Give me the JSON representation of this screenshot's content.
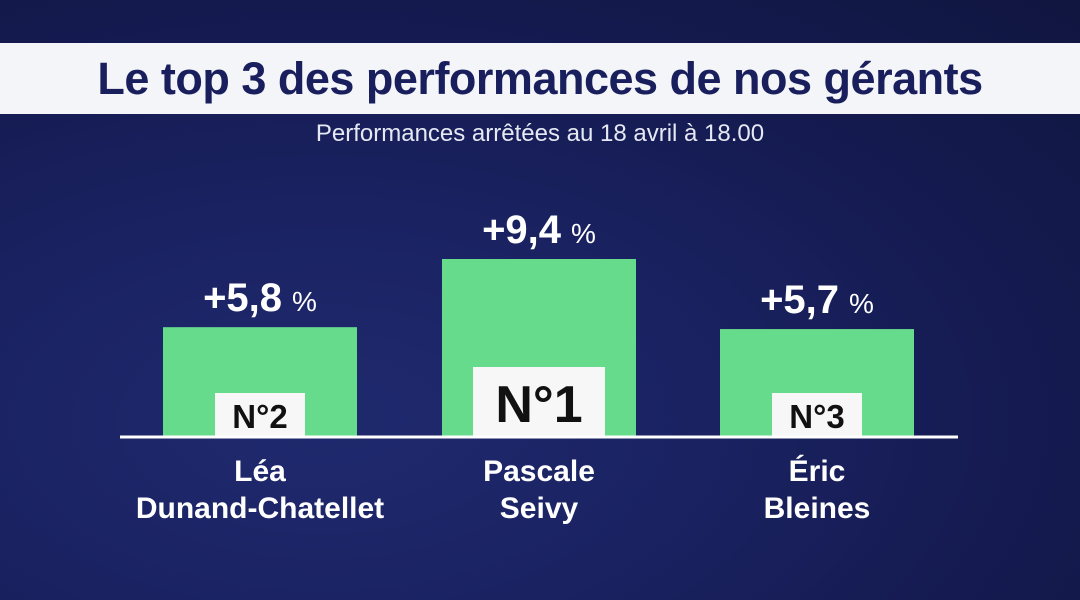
{
  "header": {
    "title": "Le top 3 des performances de nos gérants",
    "subtitle": "Performances arrêtées au 18 avril à 18.00"
  },
  "colors": {
    "background": "#161c52",
    "title_band": "#f4f5f8",
    "title_text": "#191e5c",
    "bar": "#67db8c",
    "rank_box": "#f7f7f7",
    "rank_text": "#111111",
    "text": "#ffffff"
  },
  "chart_data": {
    "type": "bar",
    "categories": [
      "Léa Dunand-Chatellet",
      "Pascale Seivy",
      "Éric Bleines"
    ],
    "name_lines": [
      [
        "Léa",
        "Dunand-Chatellet"
      ],
      [
        "Pascale",
        "Seivy"
      ],
      [
        "Éric",
        "Bleines"
      ]
    ],
    "values": [
      5.8,
      9.4,
      5.7
    ],
    "value_labels": [
      "+5,8",
      "+9,4",
      "+5,7"
    ],
    "unit": "%",
    "ranks": [
      "N°2",
      "N°1",
      "N°3"
    ],
    "ylim": [
      0,
      9.4
    ],
    "grid": false,
    "legend": "none"
  }
}
